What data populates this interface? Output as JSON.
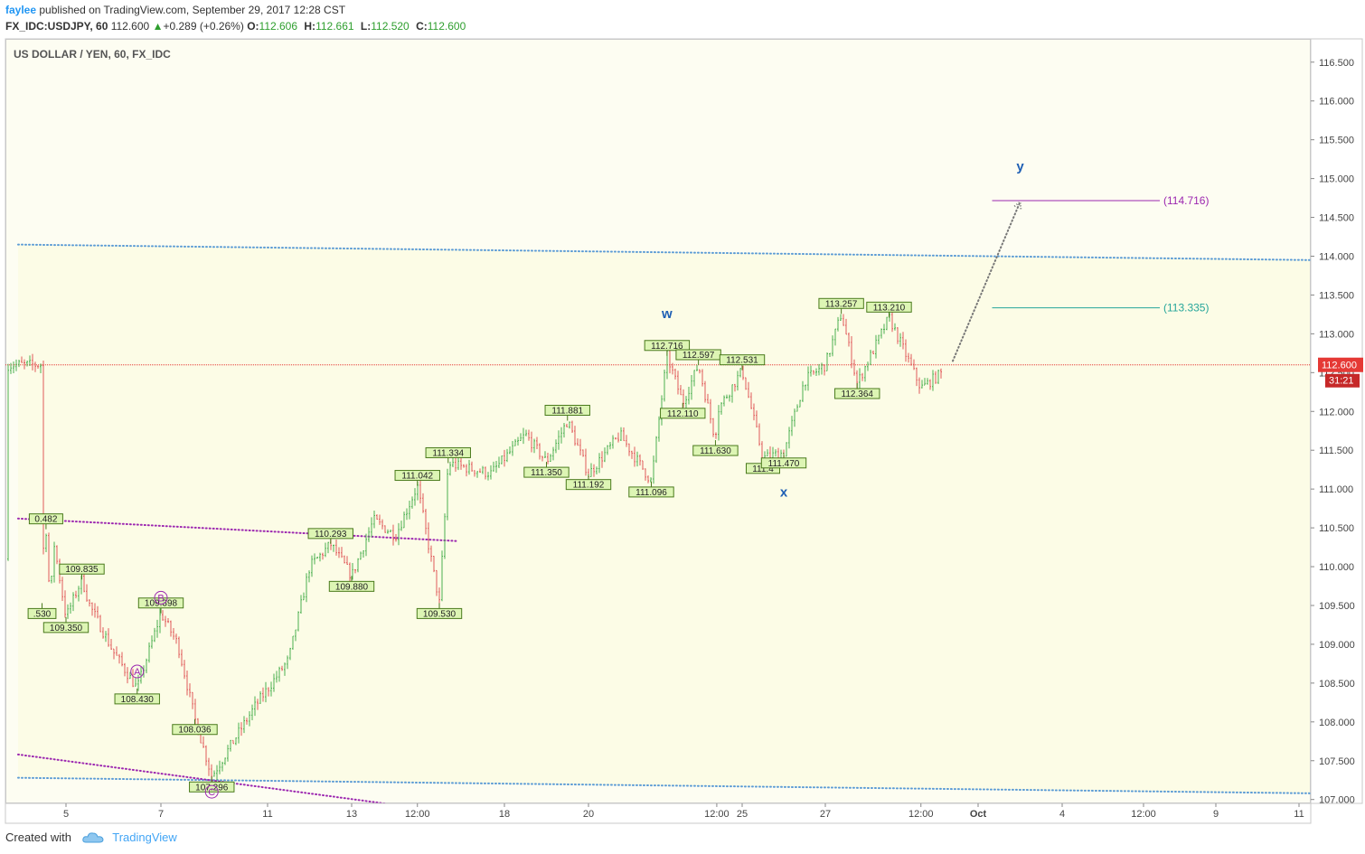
{
  "header": {
    "user": "faylee",
    "published_text": "published on TradingView.com, September 29, 2017 12:28 CST",
    "symbol": "FX_IDC:USDJPY, 60",
    "last": "112.600",
    "change_arrow": "▲",
    "change": "+0.289 (+0.26%)",
    "open_label": "O:",
    "open": "112.606",
    "high_label": "H:",
    "high": "112.661",
    "low_label": "L:",
    "low": "112.520",
    "close_label": "C:",
    "close": "112.600"
  },
  "footer": {
    "created_with": "Created with",
    "brand": "TradingView",
    "icon": "tradingview-cloud-icon"
  },
  "colors": {
    "background_zone": "#fcfce6",
    "candle_up": "#4caf50",
    "candle_down": "#e05a5a",
    "price_line": "#e53935",
    "channel_blue": "#5b9bd5",
    "channel_purple": "#9c27b0",
    "target_purple": "#9c27b0",
    "target_green": "#26a69a",
    "wave_label": "#1e5fb4",
    "pivot_label_bg": "#ddf5b4",
    "pivot_label_border": "#4a7a1c"
  },
  "chart_data": {
    "type": "candlestick",
    "title": "US DOLLAR / YEN, 60, FX_IDC",
    "y_axis": {
      "range": [
        106.95,
        116.8
      ],
      "ticks": [
        "107.000",
        "107.500",
        "108.000",
        "108.500",
        "109.000",
        "109.500",
        "110.000",
        "110.500",
        "111.000",
        "111.500",
        "112.000",
        "112.500",
        "113.000",
        "113.500",
        "114.000",
        "114.500",
        "115.000",
        "115.500",
        "116.000",
        "116.500"
      ],
      "position": "right"
    },
    "x_axis": {
      "ticks": [
        "5",
        "7",
        "11",
        "13",
        "12:00",
        "18",
        "20",
        "12:00",
        "25",
        "27",
        "12:00",
        "Oct",
        "4",
        "12:00",
        "9",
        "11"
      ]
    },
    "last_price": {
      "value": 112.6,
      "label": "112.600",
      "countdown": "31:21"
    },
    "price_path": [
      [
        "Sep 4 00:00",
        110.1
      ],
      [
        "Sep 4 04:00",
        110.48
      ],
      [
        "Sep 4 08:00",
        109.53
      ],
      [
        "Sep 4 12:00",
        110.3
      ],
      [
        "Sep 5 00:00",
        109.35
      ],
      [
        "Sep 5 08:00",
        109.84
      ],
      [
        "Sep 5 12:00",
        109.5
      ],
      [
        "Sep 6 00:00",
        108.9
      ],
      [
        "Sep 6 12:00",
        108.43
      ],
      [
        "Sep 7 00:00",
        109.4
      ],
      [
        "Sep 7 12:00",
        109.0
      ],
      [
        "Sep 8 00:00",
        108.04
      ],
      [
        "Sep 8 12:00",
        107.3
      ],
      [
        "Sep 10 22:00",
        108.2
      ],
      [
        "Sep 11 12:00",
        108.8
      ],
      [
        "Sep 12 00:00",
        110.0
      ],
      [
        "Sep 12 12:00",
        110.29
      ],
      [
        "Sep 13 00:00",
        109.88
      ],
      [
        "Sep 13 12:00",
        110.6
      ],
      [
        "Sep 14 00:00",
        110.4
      ],
      [
        "Sep 14 12:00",
        111.04
      ],
      [
        "Sep 15 00:00",
        109.53
      ],
      [
        "Sep 15 12:00",
        111.33
      ],
      [
        "Sep 17 22:00",
        111.2
      ],
      [
        "Sep 18 12:00",
        111.7
      ],
      [
        "Sep 19 00:00",
        111.35
      ],
      [
        "Sep 19 12:00",
        111.88
      ],
      [
        "Sep 20 00:00",
        111.19
      ],
      [
        "Sep 20 12:00",
        111.7
      ],
      [
        "Sep 21 00:00",
        111.1
      ],
      [
        "Sep 21 06:00",
        112.72
      ],
      [
        "Sep 21 12:00",
        112.11
      ],
      [
        "Sep 21 18:00",
        112.6
      ],
      [
        "Sep 22 06:00",
        111.63
      ],
      [
        "Sep 22 12:00",
        112.0
      ],
      [
        "Sep 25 00:00",
        112.53
      ],
      [
        "Sep 25 12:00",
        111.4
      ],
      [
        "Sep 26 00:00",
        111.47
      ],
      [
        "Sep 26 12:00",
        112.4
      ],
      [
        "Sep 27 00:00",
        112.6
      ],
      [
        "Sep 27 06:00",
        113.26
      ],
      [
        "Sep 27 12:00",
        112.36
      ],
      [
        "Sep 28 00:00",
        113.21
      ],
      [
        "Sep 28 12:00",
        112.3
      ],
      [
        "Sep 29 00:00",
        112.6
      ]
    ],
    "pivot_labels": [
      {
        "time": "Sep 4 04:00",
        "price": 110.482,
        "label": "0.482",
        "pos": "above"
      },
      {
        "time": "Sep 4 00:00",
        "price": 109.53,
        "label": ".530",
        "pos": "below"
      },
      {
        "time": "Sep 5 00:00",
        "price": 109.35,
        "label": "109.350",
        "pos": "below"
      },
      {
        "time": "Sep 5 08:00",
        "price": 109.835,
        "label": "109.835",
        "pos": "above"
      },
      {
        "time": "Sep 6 12:00",
        "price": 108.43,
        "label": "108.430",
        "pos": "below"
      },
      {
        "time": "Sep 7 00:00",
        "price": 109.398,
        "label": "109.398",
        "pos": "above"
      },
      {
        "time": "Sep 8 00:00",
        "price": 108.036,
        "label": "108.036",
        "pos": "below"
      },
      {
        "time": "Sep 8 12:00",
        "price": 107.296,
        "label": "107.296",
        "pos": "below"
      },
      {
        "time": "Sep 12 12:00",
        "price": 110.293,
        "label": "110.293",
        "pos": "above"
      },
      {
        "time": "Sep 13 00:00",
        "price": 109.88,
        "label": "109.880",
        "pos": "below"
      },
      {
        "time": "Sep 14 12:00",
        "price": 111.042,
        "label": "111.042",
        "pos": "above"
      },
      {
        "time": "Sep 15 00:00",
        "price": 109.53,
        "label": "109.530",
        "pos": "below"
      },
      {
        "time": "Sep 15 12:00",
        "price": 111.334,
        "label": "111.334",
        "pos": "above"
      },
      {
        "time": "Sep 19 00:00",
        "price": 111.35,
        "label": "111.350",
        "pos": "below"
      },
      {
        "time": "Sep 19 12:00",
        "price": 111.881,
        "label": "111.881",
        "pos": "above"
      },
      {
        "time": "Sep 20 00:00",
        "price": 111.192,
        "label": "111.192",
        "pos": "below"
      },
      {
        "time": "Sep 21 00:00",
        "price": 111.096,
        "label": "111.096",
        "pos": "below"
      },
      {
        "time": "Sep 21 06:00",
        "price": 112.716,
        "label": "112.716",
        "pos": "above"
      },
      {
        "time": "Sep 21 12:00",
        "price": 112.11,
        "label": "112.110",
        "pos": "below"
      },
      {
        "time": "Sep 21 18:00",
        "price": 112.597,
        "label": "112.597",
        "pos": "above"
      },
      {
        "time": "Sep 22 06:00",
        "price": 111.63,
        "label": "111.630",
        "pos": "below"
      },
      {
        "time": "Sep 25 00:00",
        "price": 112.531,
        "label": "112.531",
        "pos": "above"
      },
      {
        "time": "Sep 25 12:00",
        "price": 111.4,
        "label": "111.4",
        "pos": "below"
      },
      {
        "time": "Sep 26 00:00",
        "price": 111.47,
        "label": "111.470",
        "pos": "below"
      },
      {
        "time": "Sep 27 06:00",
        "price": 113.257,
        "label": "113.257",
        "pos": "above"
      },
      {
        "time": "Sep 27 12:00",
        "price": 112.364,
        "label": "112.364",
        "pos": "below"
      },
      {
        "time": "Sep 28 00:00",
        "price": 113.21,
        "label": "113.210",
        "pos": "above"
      }
    ],
    "wave_labels": [
      {
        "time": "Sep 21 06:00",
        "price": 113.2,
        "label": "w"
      },
      {
        "time": "Sep 26 00:00",
        "price": 110.9,
        "label": "x"
      },
      {
        "time": "Oct 2 12:00",
        "price": 115.1,
        "label": "y"
      }
    ],
    "circled_labels": [
      {
        "time": "Sep 6 12:00",
        "price": 108.65,
        "label": "A"
      },
      {
        "time": "Sep 7 00:00",
        "price": 109.6,
        "label": "B"
      },
      {
        "time": "Sep 8 12:00",
        "price": 107.1,
        "label": "C"
      }
    ],
    "target_levels": [
      {
        "price": 114.716,
        "label": "(114.716)",
        "from": "Oct 1 12:00",
        "to": "Oct 7 00:00",
        "color": "purple"
      },
      {
        "price": 113.335,
        "label": "(113.335)",
        "from": "Oct 1 12:00",
        "to": "Oct 7 00:00",
        "color": "green"
      }
    ],
    "projection": {
      "from": [
        "Sep 29 00:00",
        112.65
      ],
      "to": [
        "Oct 2 12:00",
        114.7
      ],
      "style": "dotted"
    },
    "channel_lines": [
      {
        "style": "dotted",
        "color": "blue",
        "points": [
          [
            "Sep 3 00:00",
            114.15
          ],
          [
            "Oct 11 12:00",
            113.95
          ]
        ]
      },
      {
        "style": "dotted",
        "color": "blue",
        "points": [
          [
            "Sep 3 00:00",
            107.28
          ],
          [
            "Oct 11 12:00",
            107.08
          ]
        ]
      },
      {
        "style": "dotted",
        "color": "purple",
        "points": [
          [
            "Sep 3 00:00",
            110.62
          ],
          [
            "Sep 16 00:00",
            110.33
          ]
        ]
      },
      {
        "style": "dotted",
        "color": "purple",
        "points": [
          [
            "Sep 3 00:00",
            107.58
          ],
          [
            "Sep 14 00:00",
            106.93
          ]
        ]
      }
    ]
  }
}
